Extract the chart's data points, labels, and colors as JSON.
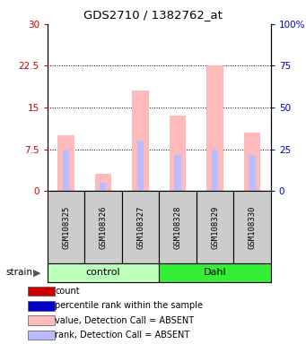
{
  "title": "GDS2710 / 1382762_at",
  "samples": [
    "GSM108325",
    "GSM108326",
    "GSM108327",
    "GSM108328",
    "GSM108329",
    "GSM108330"
  ],
  "group_colors": [
    "#bbffbb",
    "#33ee33"
  ],
  "pink_values": [
    10.0,
    3.0,
    18.0,
    13.5,
    22.5,
    10.5
  ],
  "blue_ranks": [
    7.5,
    1.5,
    9.0,
    6.5,
    7.5,
    6.5
  ],
  "ylim_left": [
    0,
    30
  ],
  "ylim_right": [
    0,
    100
  ],
  "yticks_left": [
    0,
    7.5,
    15,
    22.5,
    30
  ],
  "ytick_labels_left": [
    "0",
    "7.5",
    "15",
    "22.5",
    "30"
  ],
  "yticks_right": [
    0,
    25,
    50,
    75,
    100
  ],
  "ytick_labels_right": [
    "0",
    "25",
    "50",
    "75",
    "100%"
  ],
  "left_axis_color": "#cc0000",
  "right_axis_color": "#0000cc",
  "pink_color": "#ffbbbb",
  "blue_color": "#bbbbff",
  "bg_label": "#cccccc",
  "legend_items": [
    {
      "color": "#cc0000",
      "label": "count"
    },
    {
      "color": "#0000cc",
      "label": "percentile rank within the sample"
    },
    {
      "color": "#ffbbbb",
      "label": "value, Detection Call = ABSENT"
    },
    {
      "color": "#bbbbff",
      "label": "rank, Detection Call = ABSENT"
    }
  ]
}
